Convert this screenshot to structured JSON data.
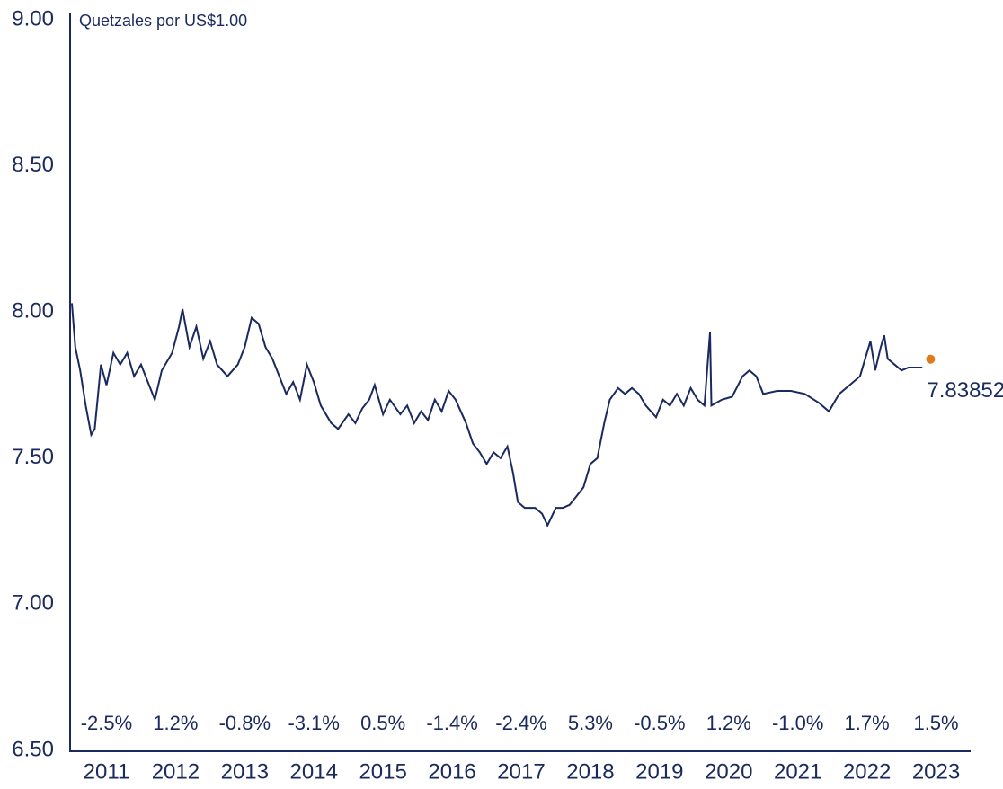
{
  "chart_data": {
    "type": "line",
    "y_axis_label": "Quetzales por US$1.00",
    "color": "#1b2a5e",
    "x": [
      2011.0,
      2011.05,
      2011.12,
      2011.2,
      2011.28,
      2011.33,
      2011.42,
      2011.5,
      2011.6,
      2011.7,
      2011.8,
      2011.9,
      2012.0,
      2012.1,
      2012.2,
      2012.3,
      2012.45,
      2012.55,
      2012.6,
      2012.7,
      2012.8,
      2012.9,
      2013.0,
      2013.1,
      2013.25,
      2013.4,
      2013.5,
      2013.6,
      2013.7,
      2013.8,
      2013.9,
      2014.0,
      2014.1,
      2014.2,
      2014.3,
      2014.4,
      2014.5,
      2014.6,
      2014.75,
      2014.85,
      2015.0,
      2015.1,
      2015.2,
      2015.3,
      2015.38,
      2015.5,
      2015.6,
      2015.75,
      2015.85,
      2015.95,
      2016.05,
      2016.15,
      2016.25,
      2016.35,
      2016.45,
      2016.55,
      2016.7,
      2016.8,
      2016.9,
      2017.0,
      2017.1,
      2017.2,
      2017.3,
      2017.38,
      2017.45,
      2017.55,
      2017.7,
      2017.8,
      2017.88,
      2018.0,
      2018.1,
      2018.2,
      2018.3,
      2018.4,
      2018.5,
      2018.6,
      2018.7,
      2018.78,
      2018.9,
      2019.0,
      2019.1,
      2019.2,
      2019.3,
      2019.45,
      2019.55,
      2019.65,
      2019.75,
      2019.85,
      2019.95,
      2020.05,
      2020.15,
      2020.23,
      2020.25,
      2020.4,
      2020.55,
      2020.7,
      2020.8,
      2020.9,
      2021.0,
      2021.2,
      2021.4,
      2021.6,
      2021.8,
      2021.95,
      2022.1,
      2022.25,
      2022.4,
      2022.5,
      2022.55,
      2022.62,
      2022.7,
      2022.75,
      2022.8,
      2022.9,
      2023.0,
      2023.1,
      2023.3
    ],
    "values": [
      8.03,
      7.88,
      7.8,
      7.68,
      7.58,
      7.6,
      7.82,
      7.75,
      7.86,
      7.82,
      7.86,
      7.78,
      7.82,
      7.76,
      7.7,
      7.8,
      7.86,
      7.95,
      8.01,
      7.88,
      7.95,
      7.84,
      7.9,
      7.82,
      7.78,
      7.82,
      7.88,
      7.98,
      7.96,
      7.88,
      7.84,
      7.78,
      7.72,
      7.76,
      7.7,
      7.82,
      7.76,
      7.68,
      7.62,
      7.6,
      7.65,
      7.62,
      7.67,
      7.7,
      7.75,
      7.65,
      7.7,
      7.65,
      7.68,
      7.62,
      7.66,
      7.63,
      7.7,
      7.66,
      7.73,
      7.7,
      7.62,
      7.55,
      7.52,
      7.48,
      7.52,
      7.5,
      7.54,
      7.45,
      7.35,
      7.33,
      7.33,
      7.31,
      7.27,
      7.33,
      7.33,
      7.34,
      7.37,
      7.4,
      7.48,
      7.5,
      7.62,
      7.7,
      7.74,
      7.72,
      7.74,
      7.72,
      7.68,
      7.64,
      7.7,
      7.68,
      7.72,
      7.68,
      7.74,
      7.7,
      7.68,
      7.93,
      7.68,
      7.7,
      7.71,
      7.78,
      7.8,
      7.78,
      7.72,
      7.73,
      7.73,
      7.72,
      7.69,
      7.66,
      7.72,
      7.75,
      7.78,
      7.86,
      7.9,
      7.8,
      7.88,
      7.92,
      7.84,
      7.82,
      7.8,
      7.81,
      7.81
    ],
    "highlight": {
      "x": 2023.42,
      "value": 7.83852,
      "color": "#e07a1f"
    },
    "xlim": [
      2011,
      2024
    ],
    "xticks": [
      {
        "value": 2011.5,
        "label": "2011"
      },
      {
        "value": 2012.5,
        "label": "2012"
      },
      {
        "value": 2013.5,
        "label": "2013"
      },
      {
        "value": 2014.5,
        "label": "2014"
      },
      {
        "value": 2015.5,
        "label": "2015"
      },
      {
        "value": 2016.5,
        "label": "2016"
      },
      {
        "value": 2017.5,
        "label": "2017"
      },
      {
        "value": 2018.5,
        "label": "2018"
      },
      {
        "value": 2019.5,
        "label": "2019"
      },
      {
        "value": 2020.5,
        "label": "2020"
      },
      {
        "value": 2021.5,
        "label": "2021"
      },
      {
        "value": 2022.5,
        "label": "2022"
      },
      {
        "value": 2023.5,
        "label": "2023"
      }
    ],
    "annual_changes": [
      "-2.5%",
      "1.2%",
      "-0.8%",
      "-3.1%",
      "0.5%",
      "-1.4%",
      "-2.4%",
      "5.3%",
      "-0.5%",
      "1.2%",
      "-1.0%",
      "1.7%",
      "1.5%"
    ],
    "ylim": [
      6.5,
      9
    ],
    "yticks": [
      {
        "value": 6.5,
        "label": "6.50"
      },
      {
        "value": 7,
        "label": "7.00"
      },
      {
        "value": 7.5,
        "label": "7.50"
      },
      {
        "value": 8,
        "label": "8.00"
      },
      {
        "value": 8.5,
        "label": "8.50"
      },
      {
        "value": 9,
        "label": "9.00"
      }
    ],
    "grid": false
  }
}
